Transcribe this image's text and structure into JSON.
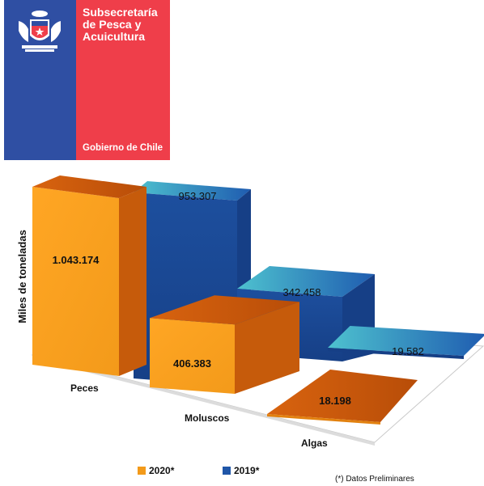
{
  "logo": {
    "lines": [
      "Subsecretaría",
      "de Pesca y",
      "Acuicultura"
    ],
    "government": "Gobierno de Chile"
  },
  "chart_data": {
    "type": "bar",
    "style": "3d",
    "categories": [
      "Peces",
      "Moluscos",
      "Algas"
    ],
    "series": [
      {
        "name": "2020*",
        "values": [
          1043174,
          406383,
          18198
        ],
        "labels": [
          "1.043.174",
          "406.383",
          "18.198"
        ],
        "color": "#f39a1a"
      },
      {
        "name": "2019*",
        "values": [
          953307,
          342458,
          19582
        ],
        "labels": [
          "953.307",
          "342.458",
          "19.582"
        ],
        "color": "#1f56a8"
      }
    ],
    "ylabel": "Miles de toneladas",
    "xlabel": "",
    "title": "",
    "legend_position": "bottom",
    "grid": false
  },
  "footnote": "(*) Datos Preliminares",
  "colors": {
    "orange": "#f39a1a",
    "blue": "#1f56a8",
    "teal": "#3ab0c4",
    "red": "#ef3e4a",
    "navy": "#2f4fa3"
  }
}
